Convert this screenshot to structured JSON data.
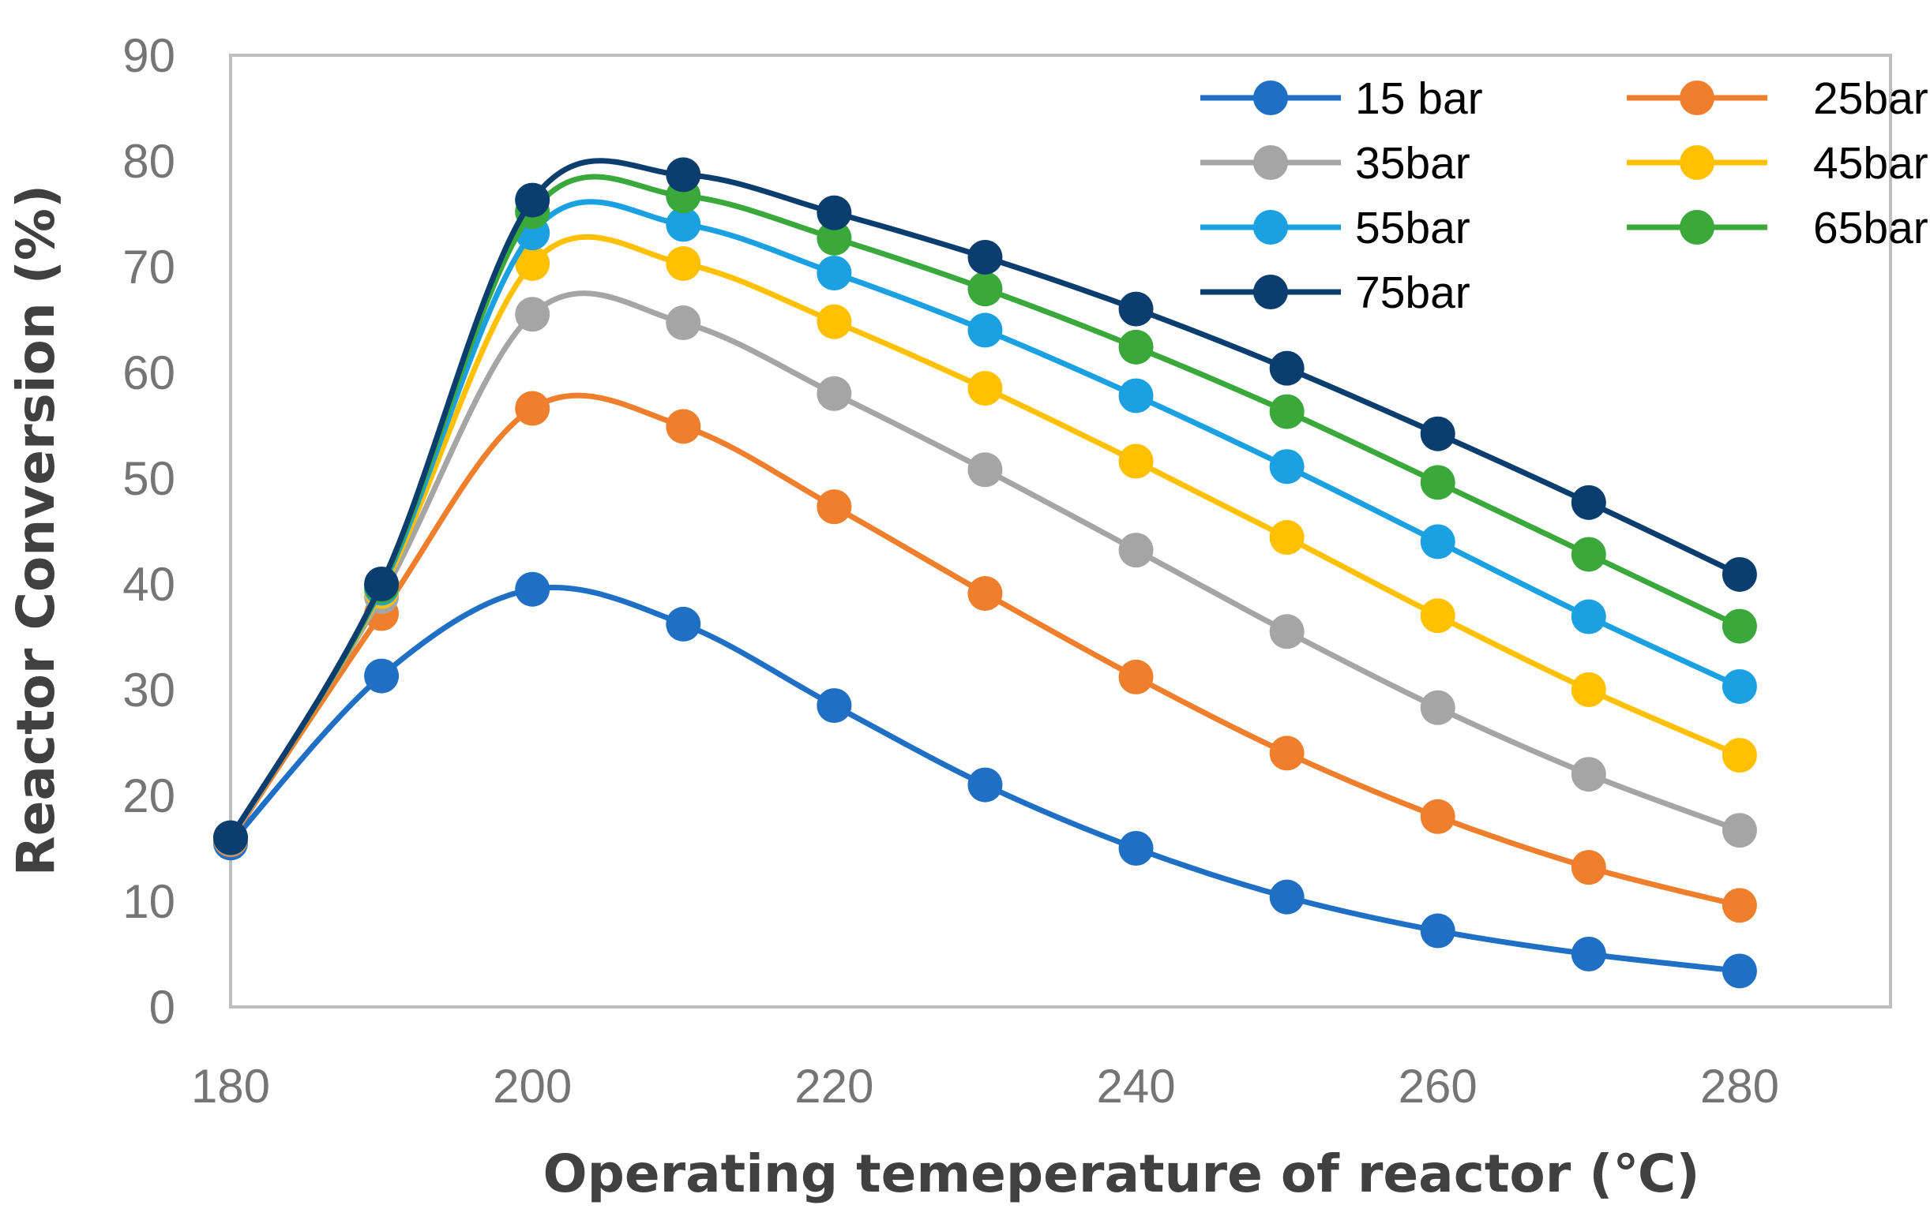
{
  "chart_data": {
    "type": "line",
    "title": "",
    "xlabel": "Operating temeperature of reactor (℃)",
    "ylabel": "Reactor Conversion (%)",
    "xlim": [
      180,
      290
    ],
    "ylim": [
      0,
      90
    ],
    "xticks": [
      "180",
      "200",
      "220",
      "240",
      "260",
      "280"
    ],
    "yticks": [
      "0",
      "10",
      "20",
      "30",
      "40",
      "50",
      "60",
      "70",
      "80",
      "90"
    ],
    "x": [
      180,
      190,
      200,
      210,
      220,
      230,
      240,
      250,
      260,
      270,
      280
    ],
    "grid": false,
    "legend_position": "top-right",
    "series": [
      {
        "name": "15 bar",
        "color": "#1f6fc5",
        "values": [
          15.5,
          31.3,
          39.5,
          36.2,
          28.5,
          21.0,
          15.0,
          10.4,
          7.2,
          5.0,
          3.4
        ]
      },
      {
        "name": "25bar",
        "color": "#f07f2d",
        "values": [
          15.8,
          37.2,
          56.6,
          54.9,
          47.3,
          39.1,
          31.2,
          24.0,
          18.0,
          13.2,
          9.6
        ]
      },
      {
        "name": "35bar",
        "color": "#a5a5a5",
        "values": [
          15.9,
          38.8,
          65.5,
          64.7,
          58.0,
          50.8,
          43.2,
          35.5,
          28.3,
          22.0,
          16.7
        ]
      },
      {
        "name": "45bar",
        "color": "#ffc000",
        "values": [
          16.0,
          39.3,
          70.3,
          70.3,
          64.8,
          58.5,
          51.6,
          44.4,
          37.0,
          30.0,
          23.8
        ]
      },
      {
        "name": "55bar",
        "color": "#1ba1e2",
        "values": [
          16.0,
          39.6,
          73.2,
          74.0,
          69.4,
          64.0,
          57.8,
          51.1,
          44.0,
          36.9,
          30.3
        ]
      },
      {
        "name": "65bar",
        "color": "#3aa83a",
        "values": [
          16.0,
          39.8,
          75.2,
          76.7,
          72.7,
          67.9,
          62.4,
          56.3,
          49.6,
          42.8,
          36.0
        ]
      },
      {
        "name": "75bar",
        "color": "#0b3d6e",
        "values": [
          16.0,
          40.0,
          76.3,
          78.7,
          75.1,
          70.9,
          66.0,
          60.4,
          54.2,
          47.7,
          40.9
        ]
      }
    ]
  }
}
